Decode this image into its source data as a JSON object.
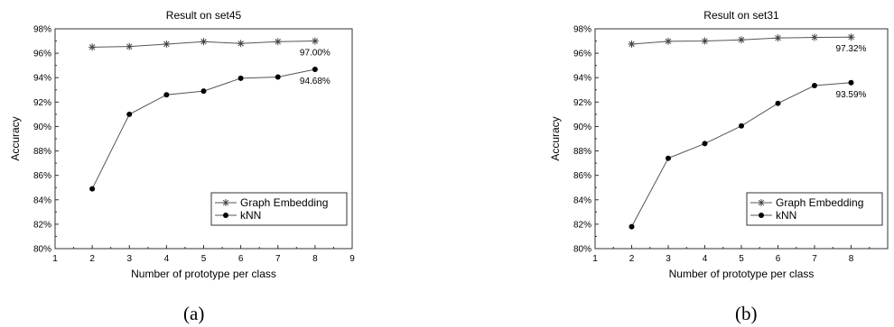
{
  "captions": [
    "(a)",
    "(b)"
  ],
  "chart_data": [
    {
      "type": "line",
      "title": "Result on set45",
      "xlabel": "Number of prototype per class",
      "ylabel": "Accuracy",
      "xlim": [
        1,
        9
      ],
      "ylim": [
        80,
        98
      ],
      "x_ticks": [
        "1",
        "2",
        "3",
        "4",
        "5",
        "6",
        "7",
        "8",
        "9"
      ],
      "y_ticks": [
        "80%",
        "82%",
        "84%",
        "86%",
        "88%",
        "90%",
        "92%",
        "94%",
        "96%",
        "98%"
      ],
      "legend_position": "bottom-right",
      "grid": false,
      "x": [
        2,
        3,
        4,
        5,
        6,
        7,
        8
      ],
      "series": [
        {
          "name": "Graph Embedding",
          "marker": "star",
          "values": [
            96.5,
            96.55,
            96.75,
            96.95,
            96.8,
            96.95,
            97.0
          ]
        },
        {
          "name": "kNN",
          "marker": "dot",
          "values": [
            84.9,
            91.0,
            92.6,
            92.9,
            93.95,
            94.05,
            94.68
          ]
        }
      ],
      "annotations": [
        {
          "text": "97.00%",
          "x": 8,
          "y": 97.0,
          "placement": "below"
        },
        {
          "text": "94.68%",
          "x": 8,
          "y": 94.68,
          "placement": "below"
        }
      ]
    },
    {
      "type": "line",
      "title": "Result on set31",
      "xlabel": "Number of prototype per class",
      "ylabel": "Accuracy",
      "xlim": [
        1,
        9
      ],
      "ylim": [
        80,
        98
      ],
      "x_ticks": [
        "1",
        "2",
        "3",
        "4",
        "5",
        "6",
        "7",
        "8"
      ],
      "y_ticks": [
        "80%",
        "82%",
        "84%",
        "86%",
        "88%",
        "90%",
        "92%",
        "94%",
        "96%",
        "98%"
      ],
      "legend_position": "bottom-right",
      "grid": false,
      "x": [
        2,
        3,
        4,
        5,
        6,
        7,
        8
      ],
      "series": [
        {
          "name": "Graph Embedding",
          "marker": "star",
          "values": [
            96.75,
            96.98,
            97.0,
            97.1,
            97.25,
            97.3,
            97.32
          ]
        },
        {
          "name": "kNN",
          "marker": "dot",
          "values": [
            81.8,
            87.4,
            88.6,
            90.05,
            91.9,
            93.35,
            93.59
          ]
        }
      ],
      "annotations": [
        {
          "text": "97.32%",
          "x": 8,
          "y": 97.32,
          "placement": "below"
        },
        {
          "text": "93.59%",
          "x": 8,
          "y": 93.59,
          "placement": "below"
        }
      ]
    }
  ]
}
